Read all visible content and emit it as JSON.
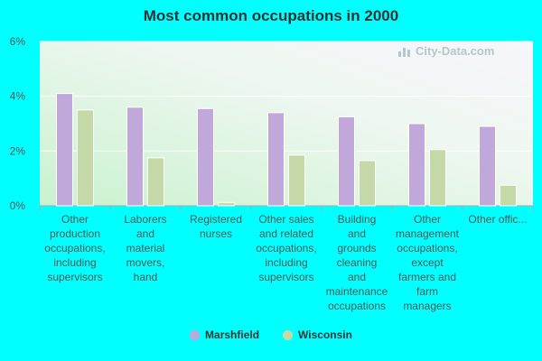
{
  "chart_data": {
    "type": "bar",
    "title": "Most common occupations in 2000",
    "categories": [
      "Other production occupations, including supervisors",
      "Laborers and material movers, hand",
      "Registered nurses",
      "Other sales and related occupations, including supervisors",
      "Building and grounds cleaning and maintenance occupations",
      "Other management occupations, except farmers and farm managers",
      "Other offic..."
    ],
    "category_lines": [
      [
        "Other",
        "production",
        "occupations,",
        "including",
        "supervisors"
      ],
      [
        "Laborers",
        "and",
        "material",
        "movers,",
        "hand"
      ],
      [
        "Registered",
        "nurses"
      ],
      [
        "Other sales",
        "and related",
        "occupations,",
        "including",
        "supervisors"
      ],
      [
        "Building",
        "and",
        "grounds",
        "cleaning",
        "and",
        "maintenance",
        "occupations"
      ],
      [
        "Other",
        "management",
        "occupations,",
        "except",
        "farmers and",
        "farm",
        "managers"
      ],
      [
        "Other offic..."
      ]
    ],
    "series": [
      {
        "name": "Marshfield",
        "color": "#c0a8da",
        "values": [
          4.1,
          3.6,
          3.55,
          3.4,
          3.25,
          3.0,
          2.9
        ]
      },
      {
        "name": "Wisconsin",
        "color": "#c5d9a8",
        "values": [
          3.5,
          1.75,
          0.12,
          1.85,
          1.65,
          2.05,
          0.75
        ]
      }
    ],
    "ylim": [
      0,
      6
    ],
    "yticks": [
      "0%",
      "2%",
      "4%",
      "6%"
    ],
    "ytick_values": [
      0,
      2,
      4,
      6
    ],
    "grid": true,
    "legend_position": "bottom-center"
  },
  "watermark": {
    "text": "City-Data.com",
    "icon": "bar-chart-icon"
  }
}
